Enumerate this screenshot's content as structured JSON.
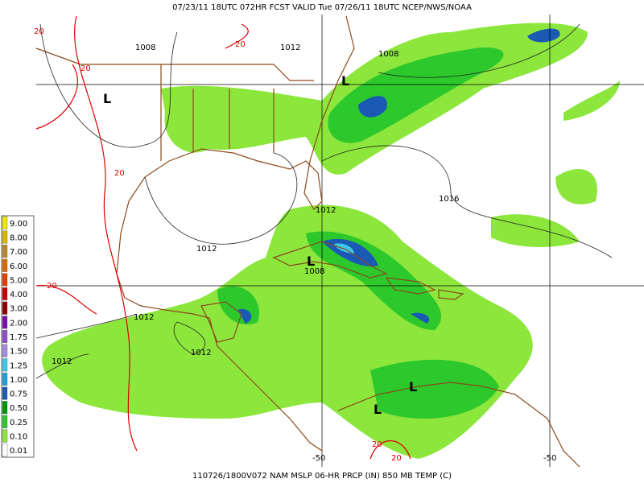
{
  "header": {
    "title": "07/23/11 18UTC  072HR  FCST VALID Tue 07/26/11 18UTC  NCEP/NWS/NOAA"
  },
  "footer": {
    "caption": "110726/1800V072 NAM MSLP 06-HR PRCP (IN) 850 MB TEMP (C)"
  },
  "legend": [
    {
      "label": "9.00",
      "color": "#f2e600"
    },
    {
      "label": "8.00",
      "color": "#d9b400"
    },
    {
      "label": "7.00",
      "color": "#b8862e"
    },
    {
      "label": "6.00",
      "color": "#d86a00"
    },
    {
      "label": "5.00",
      "color": "#e83c00"
    },
    {
      "label": "4.00",
      "color": "#c80000"
    },
    {
      "label": "3.00",
      "color": "#8c0000"
    },
    {
      "label": "2.00",
      "color": "#7a10a8"
    },
    {
      "label": "1.75",
      "color": "#8e4cc8"
    },
    {
      "label": "1.50",
      "color": "#a48ade"
    },
    {
      "label": "1.25",
      "color": "#3cc8e8"
    },
    {
      "label": "1.00",
      "color": "#1ea0dc"
    },
    {
      "label": "0.75",
      "color": "#1a5ab4"
    },
    {
      "label": "0.50",
      "color": "#009600"
    },
    {
      "label": "0.25",
      "color": "#2cc82c"
    },
    {
      "label": "0.10",
      "color": "#8ce63c"
    },
    {
      "label": "0.01",
      "color": "#ffffff"
    }
  ],
  "map": {
    "isobar_labels": [
      "1008",
      "1012",
      "1008",
      "1016",
      "1012",
      "1012",
      "1008",
      "1012",
      "1012",
      "1012"
    ],
    "isotherm_labels": [
      "20",
      "20",
      "20",
      "20",
      "20",
      "20",
      "20"
    ],
    "low_labels": [
      "L",
      "L",
      "L",
      "L",
      "L"
    ],
    "edge_labels": [
      "-50",
      "-50"
    ]
  }
}
